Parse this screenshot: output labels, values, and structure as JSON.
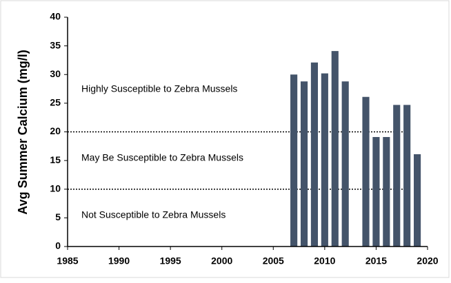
{
  "chart_data": {
    "type": "bar",
    "y_label": "Avg Summer Calcium (mg/l)",
    "x": [
      2007,
      2008,
      2009,
      2010,
      2011,
      2012,
      2014,
      2015,
      2016,
      2017,
      2018,
      2019
    ],
    "values": [
      30,
      28.8,
      32.1,
      30.2,
      34.1,
      28.8,
      26.1,
      19.1,
      19.1,
      24.7,
      24.7,
      16.1
    ],
    "color": "#44546a",
    "xlim": [
      1985,
      2020
    ],
    "xticks": [
      1985,
      1990,
      1995,
      2000,
      2005,
      2010,
      2015,
      2020
    ],
    "ylim": [
      0,
      40
    ],
    "yticks": [
      0,
      5,
      10,
      15,
      20,
      25,
      30,
      35,
      40
    ],
    "reference_lines": [
      20,
      10
    ],
    "annotations": [
      "Highly Susceptible to Zebra Mussels",
      "May Be Susceptible to Zebra Mussels",
      "Not Susceptible to Zebra Mussels"
    ]
  }
}
